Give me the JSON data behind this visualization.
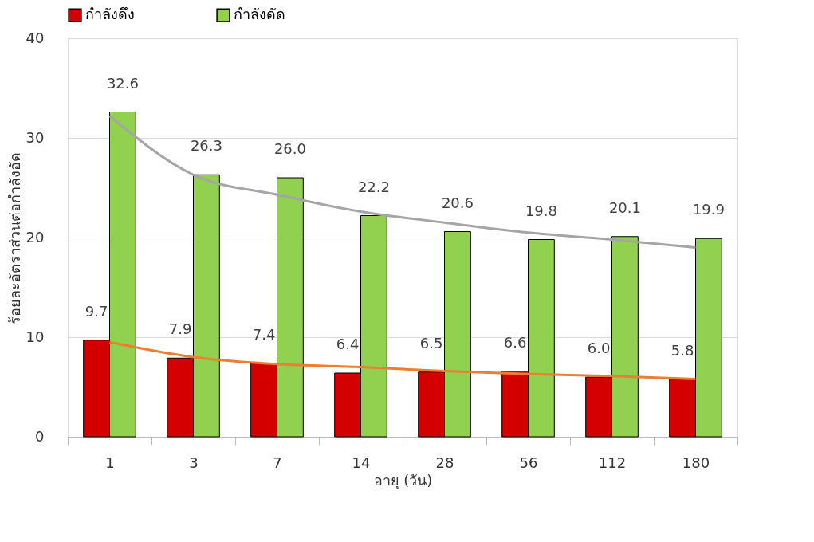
{
  "chart_data": {
    "type": "bar",
    "xlabel": "อายุ (วัน)",
    "ylabel": "ร้อยละอัตราส่วนต่อกำลังอัด",
    "categories": [
      "1",
      "3",
      "7",
      "14",
      "28",
      "56",
      "112",
      "180"
    ],
    "series": [
      {
        "name": "กำลังดึง",
        "color": "#d40000",
        "values": [
          9.7,
          7.9,
          7.4,
          6.4,
          6.5,
          6.6,
          6.0,
          5.8
        ],
        "value_labels": [
          "9.7",
          "7.9",
          "7.4",
          "6.4",
          "6.5",
          "6.6",
          "6.0",
          "5.8"
        ]
      },
      {
        "name": "กำลังดัด",
        "color": "#92d050",
        "values": [
          32.6,
          26.3,
          26.0,
          22.2,
          20.6,
          19.8,
          20.1,
          19.9
        ],
        "value_labels": [
          "32.6",
          "26.3",
          "26.0",
          "22.2",
          "20.6",
          "19.8",
          "20.1",
          "19.9"
        ]
      },
      {
        "type": "line",
        "color": "#ed7d31",
        "values": [
          9.5,
          8.0,
          7.3,
          7.0,
          6.6,
          6.3,
          6.1,
          5.8
        ]
      },
      {
        "type": "line",
        "color": "#a5a5a5",
        "values": [
          32.2,
          26.3,
          24.3,
          22.6,
          21.5,
          20.5,
          19.8,
          19.0
        ]
      }
    ],
    "ylim": [
      0,
      40
    ],
    "yticks": [
      0,
      10,
      20,
      30,
      40
    ],
    "grid": "y",
    "legend": "top"
  }
}
